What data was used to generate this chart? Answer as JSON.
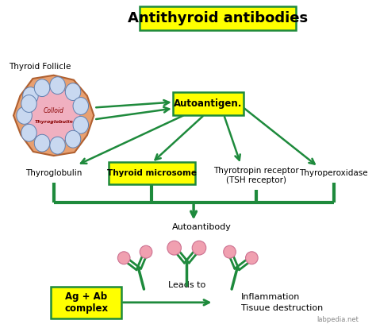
{
  "title": "Antithyroid antibodies",
  "bg_color": "#FFFFFF",
  "green": "#1e8a3c",
  "yellow": "#FFFF00",
  "watermark": "labpedia.net",
  "follicle_label": "Thyroid Follicle",
  "colloid_label": "Colloid",
  "thyroglobulin_small": "Thyroglobulin",
  "autoantigen_label": "Autoantigen.",
  "thyroid_microsome_label": "Thyroid microsome",
  "thyroglobulin_label": "Thyroglobulin",
  "tsh_label": "Thyrotropin receptor\n(TSH receptor)",
  "thyroperoxidase_label": "Thyroperoxidase",
  "autoantibody_label": "Autoantibody",
  "agab_label": "Ag + Ab\ncomplex",
  "leads_to_label": "Leads to",
  "inflammation_label": "Inflammation\nTisuue destruction"
}
